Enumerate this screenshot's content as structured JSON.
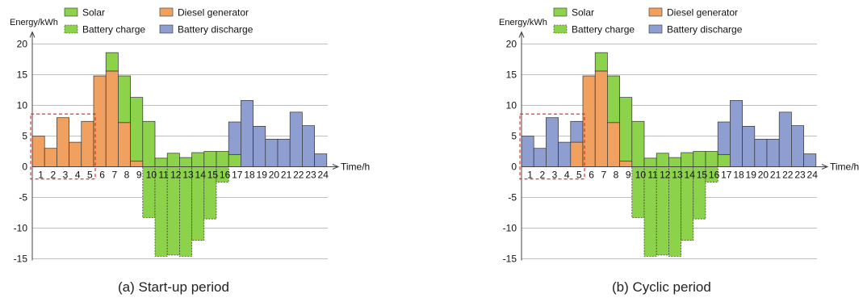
{
  "colors": {
    "solar": "#8cd24b",
    "diesel": "#f0a05f",
    "battery_discharge": "#8e9ed0",
    "battery_charge": "#8cd24b",
    "axis": "#444444",
    "grid": "#bfbfbf",
    "highlight": "#e02020"
  },
  "legend": {
    "solar": "Solar",
    "battery_charge": "Battery charge",
    "diesel": "Diesel generator",
    "battery_discharge": "Battery discharge"
  },
  "chart_data": [
    {
      "type": "bar",
      "caption": "(a) Start-up period",
      "ylabel": "Energy/kWh",
      "xlabel": "Time/h",
      "ylim": [
        -15,
        20
      ],
      "yticks": [
        20,
        15,
        10,
        5,
        0,
        -5,
        -10,
        -15
      ],
      "grid": true,
      "legend_placement": "top",
      "categories": [
        "1",
        "2",
        "3",
        "4",
        "5",
        "6",
        "7",
        "8",
        "9",
        "10",
        "11",
        "12",
        "13",
        "14",
        "15",
        "16",
        "17",
        "18",
        "19",
        "20",
        "21",
        "22",
        "23",
        "24"
      ],
      "highlight_hours": [
        1,
        5
      ],
      "series": [
        {
          "name": "Diesel generator",
          "values": [
            5,
            3,
            8,
            4,
            7.4,
            14.8,
            15.6,
            7.2,
            0.9,
            0,
            0,
            0,
            0,
            0,
            0,
            0,
            0,
            0,
            0,
            0,
            0,
            0,
            0,
            0
          ]
        },
        {
          "name": "Solar",
          "values": [
            0,
            0,
            0,
            0,
            0,
            0,
            3,
            7.6,
            10.4,
            7.4,
            1.4,
            2.2,
            1.5,
            2.3,
            2.5,
            2.5,
            2,
            0,
            0,
            0,
            0,
            0,
            0,
            0
          ]
        },
        {
          "name": "Battery discharge",
          "values": [
            0,
            0,
            0,
            0,
            0,
            0,
            0,
            0,
            0,
            0,
            0,
            0,
            0,
            0,
            0,
            0,
            5.3,
            10.8,
            6.6,
            4.5,
            4.5,
            8.9,
            6.7,
            2.1
          ]
        },
        {
          "name": "Battery charge",
          "values": [
            0,
            0,
            0,
            0,
            0,
            0,
            0,
            0,
            0,
            -8.3,
            -14.6,
            -14.4,
            -14.6,
            -12,
            -8.5,
            -2.5,
            0,
            0,
            0,
            0,
            0,
            0,
            0,
            0
          ]
        }
      ]
    },
    {
      "type": "bar",
      "caption": "(b) Cyclic period",
      "ylabel": "Energy/kWh",
      "xlabel": "Time/h",
      "ylim": [
        -15,
        20
      ],
      "yticks": [
        20,
        15,
        10,
        5,
        0,
        -5,
        -10,
        -15
      ],
      "grid": true,
      "legend_placement": "top",
      "categories": [
        "1",
        "2",
        "3",
        "4",
        "5",
        "6",
        "7",
        "8",
        "9",
        "10",
        "11",
        "12",
        "13",
        "14",
        "15",
        "16",
        "17",
        "18",
        "19",
        "20",
        "21",
        "22",
        "23",
        "24"
      ],
      "highlight_hours": [
        1,
        5
      ],
      "series": [
        {
          "name": "Diesel generator",
          "values": [
            0,
            0,
            0,
            0,
            4,
            14.8,
            15.6,
            7.2,
            0.9,
            0,
            0,
            0,
            0,
            0,
            0,
            0,
            0,
            0,
            0,
            0,
            0,
            0,
            0,
            0
          ]
        },
        {
          "name": "Solar",
          "values": [
            0,
            0,
            0,
            0,
            0,
            0,
            3,
            7.6,
            10.4,
            7.4,
            1.4,
            2.2,
            1.5,
            2.3,
            2.5,
            2.5,
            2,
            0,
            0,
            0,
            0,
            0,
            0,
            0
          ]
        },
        {
          "name": "Battery discharge",
          "values": [
            5,
            3,
            8,
            4,
            3.4,
            0,
            0,
            0,
            0,
            0,
            0,
            0,
            0,
            0,
            0,
            0,
            5.3,
            10.8,
            6.6,
            4.5,
            4.5,
            8.9,
            6.7,
            2.1
          ]
        },
        {
          "name": "Battery charge",
          "values": [
            0,
            0,
            0,
            0,
            0,
            0,
            0,
            0,
            0,
            -8.3,
            -14.6,
            -14.4,
            -14.6,
            -12,
            -8.5,
            -2.5,
            0,
            0,
            0,
            0,
            0,
            0,
            0,
            0
          ]
        }
      ]
    }
  ]
}
